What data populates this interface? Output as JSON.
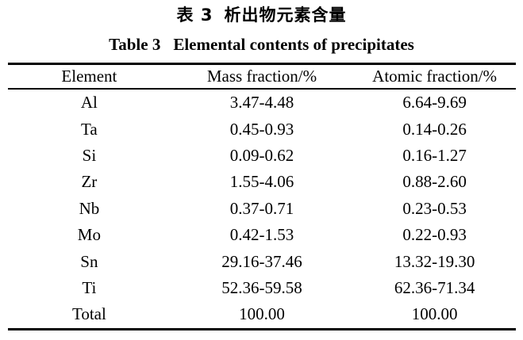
{
  "page": {
    "background": "#ffffff",
    "text_color": "#000000",
    "rule_color": "#000000"
  },
  "caption_zh": {
    "label": "表 3",
    "title": "析出物元素含量"
  },
  "caption_en": {
    "label": "Table 3",
    "title": "Elemental contents of precipitates"
  },
  "table": {
    "columns": [
      "Element",
      "Mass fraction/%",
      "Atomic fraction/%"
    ],
    "rows": [
      {
        "element": "Al",
        "mass": "3.47-4.48",
        "atomic": "6.64-9.69"
      },
      {
        "element": "Ta",
        "mass": "0.45-0.93",
        "atomic": "0.14-0.26"
      },
      {
        "element": "Si",
        "mass": "0.09-0.62",
        "atomic": "0.16-1.27"
      },
      {
        "element": "Zr",
        "mass": "1.55-4.06",
        "atomic": "0.88-2.60"
      },
      {
        "element": "Nb",
        "mass": "0.37-0.71",
        "atomic": "0.23-0.53"
      },
      {
        "element": "Mo",
        "mass": "0.42-1.53",
        "atomic": "0.22-0.93"
      },
      {
        "element": "Sn",
        "mass": "29.16-37.46",
        "atomic": "13.32-19.30"
      },
      {
        "element": "Ti",
        "mass": "52.36-59.58",
        "atomic": "62.36-71.34"
      },
      {
        "element": "Total",
        "mass": "100.00",
        "atomic": "100.00"
      }
    ]
  }
}
